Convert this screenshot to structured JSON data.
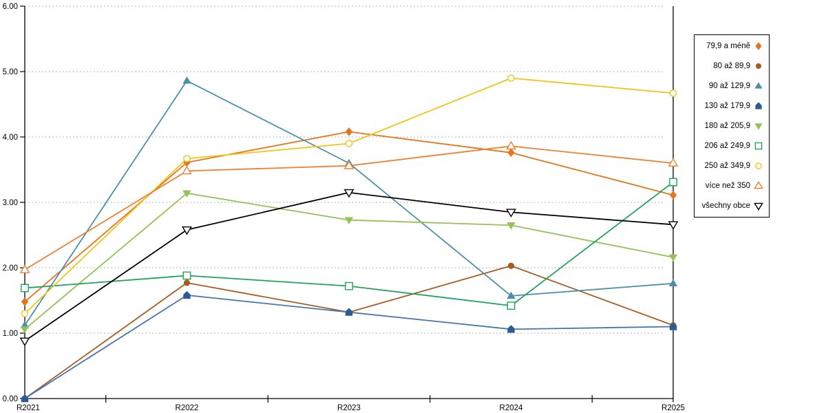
{
  "chart_data": {
    "type": "line",
    "title": "",
    "xlabel": "",
    "ylabel": "",
    "categories": [
      "R2021",
      "R2022",
      "R2023",
      "R2024",
      "R2025"
    ],
    "series": [
      {
        "name": "79,9 a méně",
        "color": "#E8731A",
        "marker": "diamond",
        "fill": "solid",
        "values": [
          1.48,
          3.61,
          4.08,
          3.76,
          3.11
        ]
      },
      {
        "name": "80 až 89,9",
        "color": "#A85B21",
        "marker": "circle",
        "fill": "solid",
        "values": [
          0.0,
          1.77,
          1.32,
          2.03,
          1.12
        ]
      },
      {
        "name": "90 až 129,9",
        "color": "#4A90A8",
        "marker": "triangle-up",
        "fill": "solid",
        "values": [
          1.12,
          4.86,
          3.6,
          1.57,
          1.76
        ]
      },
      {
        "name": "130 až 179,9",
        "color": "#4674AE",
        "marker": "pentagon",
        "fill": "solid",
        "marker_color": "#2F5B93",
        "values": [
          0.0,
          1.58,
          1.32,
          1.06,
          1.1
        ]
      },
      {
        "name": "180 až 205,9",
        "color": "#92C353",
        "marker": "triangle-down",
        "fill": "solid",
        "values": [
          1.06,
          3.14,
          2.73,
          2.65,
          2.16
        ]
      },
      {
        "name": "206 až 249,9",
        "color": "#1FA35C",
        "marker": "square",
        "fill": "open",
        "values": [
          1.69,
          1.88,
          1.72,
          1.42,
          3.31
        ]
      },
      {
        "name": "250 až 349,9",
        "color": "#F3C317",
        "marker": "circle",
        "fill": "open",
        "values": [
          1.3,
          3.67,
          3.9,
          4.9,
          4.67
        ]
      },
      {
        "name": "více než 350",
        "color": "#EF8032",
        "marker": "triangle-up",
        "fill": "open",
        "values": [
          1.97,
          3.48,
          3.56,
          3.86,
          3.6
        ]
      },
      {
        "name": "všechny obce",
        "color": "#000000",
        "marker": "triangle-down",
        "fill": "open",
        "values": [
          0.88,
          2.58,
          3.15,
          2.85,
          2.66
        ]
      }
    ],
    "ylim": [
      0,
      6
    ],
    "y_tick_step": 1,
    "y_tick_labels": [
      "0.00",
      "1.00",
      "2.00",
      "3.00",
      "4.00",
      "5.00",
      "6.00"
    ],
    "grid": "horizontal-dotted",
    "grid_color": "#b3b3b3",
    "axis_color": "#000000",
    "legend_position": "right"
  }
}
